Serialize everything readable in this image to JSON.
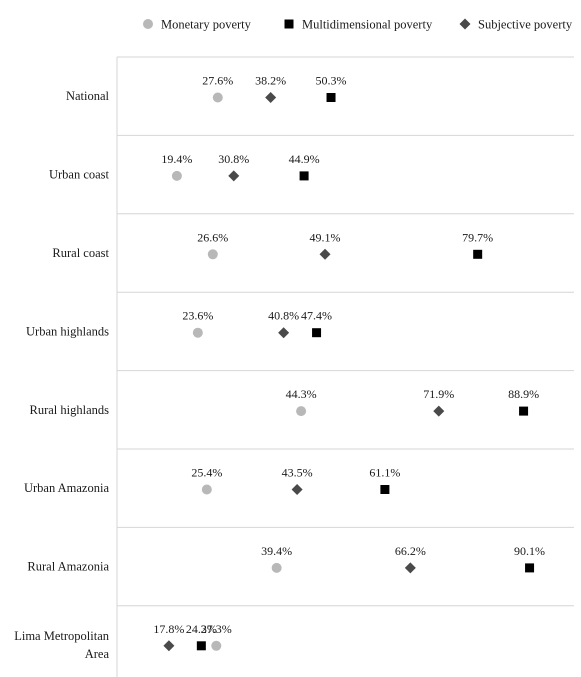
{
  "chart_data": {
    "type": "scatter",
    "title": "",
    "xlabel": "",
    "ylabel": "",
    "xlim": [
      10,
      95
    ],
    "grid": true,
    "legend_position": "top",
    "categories": [
      "National",
      "Urban coast",
      "Rural coast",
      "Urban highlands",
      "Rural highlands",
      "Urban Amazonia",
      "Rural Amazonia",
      "Lima Metropolitan Area"
    ],
    "category_lines": [
      [
        "National"
      ],
      [
        "Urban coast"
      ],
      [
        "Rural coast"
      ],
      [
        "Urban highlands"
      ],
      [
        "Rural highlands"
      ],
      [
        "Urban Amazonia"
      ],
      [
        "Rural Amazonia"
      ],
      [
        "Lima Metropolitan",
        "Area"
      ]
    ],
    "series": [
      {
        "name": "Monetary poverty",
        "marker": "circle",
        "color": "#b8b8b8",
        "values": [
          27.6,
          19.4,
          26.6,
          23.6,
          44.3,
          25.4,
          39.4,
          27.3
        ],
        "labels": [
          "27.6%",
          "19.4%",
          "26.6%",
          "23.6%",
          "44.3%",
          "25.4%",
          "39.4%",
          "27.3%"
        ]
      },
      {
        "name": "Multidimensional poverty",
        "marker": "square",
        "color": "#000000",
        "values": [
          50.3,
          44.9,
          79.7,
          47.4,
          88.9,
          61.1,
          90.1,
          24.3
        ],
        "labels": [
          "50.3%",
          "44.9%",
          "79.7%",
          "47.4%",
          "88.9%",
          "61.1%",
          "90.1%",
          "24.3%"
        ]
      },
      {
        "name": "Subjective poverty",
        "marker": "diamond",
        "color": "#4a4a4a",
        "values": [
          38.2,
          30.8,
          49.1,
          40.8,
          71.9,
          43.5,
          66.2,
          17.8
        ],
        "labels": [
          "38.2%",
          "30.8%",
          "49.1%",
          "40.8%",
          "71.9%",
          "43.5%",
          "66.2%",
          "17.8%"
        ]
      }
    ]
  }
}
